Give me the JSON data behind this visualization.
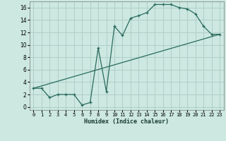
{
  "xlabel": "Humidex (Indice chaleur)",
  "background_color": "#cce8e0",
  "grid_color": "#b0cfc8",
  "line_color": "#2a6b5e",
  "xlim": [
    -0.5,
    23.5
  ],
  "ylim": [
    -0.5,
    17.0
  ],
  "xticks": [
    0,
    1,
    2,
    3,
    4,
    5,
    6,
    7,
    8,
    9,
    10,
    11,
    12,
    13,
    14,
    15,
    16,
    17,
    18,
    19,
    20,
    21,
    22,
    23
  ],
  "yticks": [
    0,
    2,
    4,
    6,
    8,
    10,
    12,
    14,
    16
  ],
  "line1_x": [
    0,
    1,
    2,
    3,
    4,
    5,
    6,
    7,
    8,
    9,
    10,
    11,
    12,
    13,
    14,
    15,
    16,
    17,
    18,
    19,
    20,
    21,
    22,
    23
  ],
  "line1_y": [
    3,
    3,
    1.5,
    2,
    2,
    2,
    0.3,
    0.7,
    9.5,
    2.5,
    13,
    11.5,
    14.3,
    14.7,
    15.2,
    16.5,
    16.5,
    16.5,
    16.0,
    15.8,
    15.0,
    13.0,
    11.7,
    11.7
  ],
  "line2_x": [
    0,
    23
  ],
  "line2_y": [
    3,
    11.7
  ]
}
